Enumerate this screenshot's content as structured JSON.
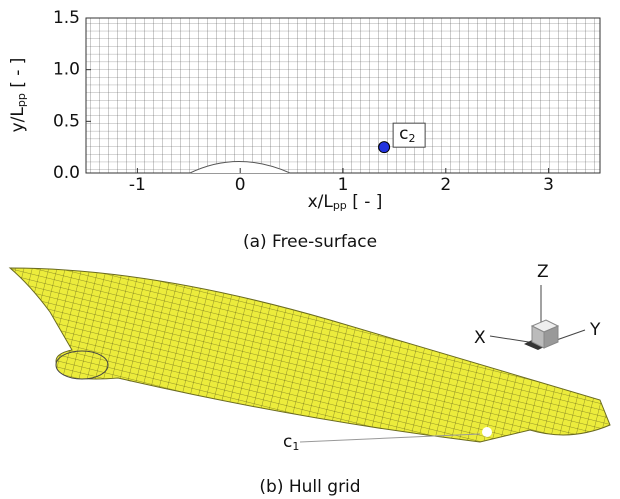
{
  "chart_data": {
    "type": "scatter",
    "x": [
      1.4
    ],
    "y": [
      0.25
    ],
    "color": "#2233dd",
    "annotation": {
      "main": "c",
      "sub": "2"
    },
    "xlabel": [
      "x/L",
      "pp",
      " [ - ]"
    ],
    "ylabel": [
      "y/L",
      "pp",
      " [ - ]"
    ],
    "xlim": [
      -1.5,
      3.5
    ],
    "ylim": [
      0,
      1.5
    ],
    "xticks": [
      -1,
      0,
      1,
      2,
      3
    ],
    "yticks": [
      {
        "value": 0,
        "label": "0.0"
      },
      0.5,
      {
        "value": 1,
        "label": "1.0"
      },
      1.5
    ],
    "caption": "(a) Free-surface"
  },
  "hull_panel": {
    "caption": "(b) Hull grid",
    "point_label": {
      "main": "c",
      "sub": "1"
    },
    "triad": {
      "z": "Z",
      "x": "X",
      "y": "Y"
    }
  }
}
